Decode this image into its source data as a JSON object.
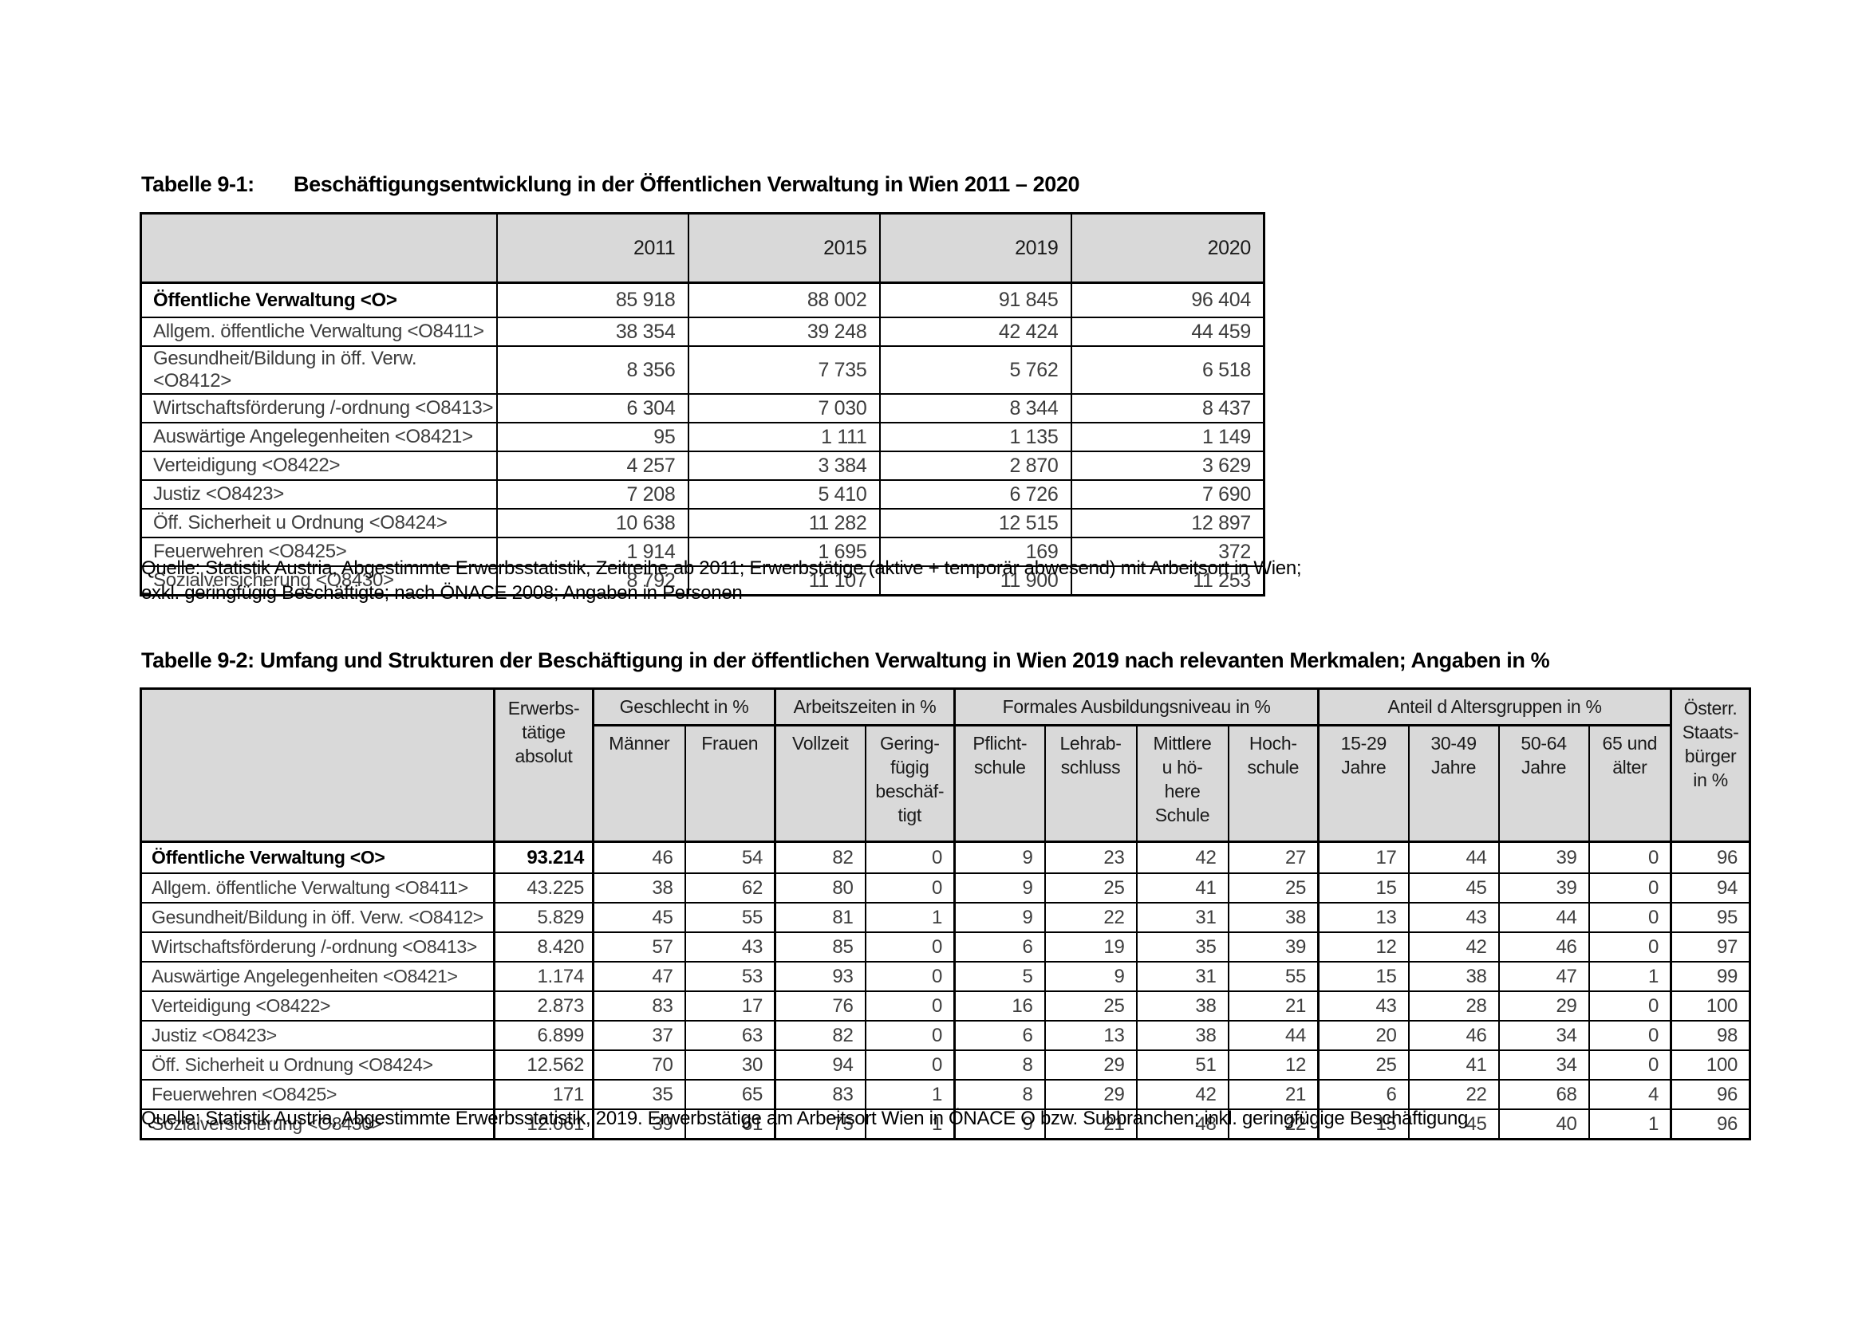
{
  "table1": {
    "title_label": "Tabelle 9-1:",
    "title_text": "Beschäftigungsentwicklung in der Öffentlichen Verwaltung in Wien 2011 – 2020",
    "columns": [
      "2011",
      "2015",
      "2019",
      "2020"
    ],
    "rows": [
      {
        "label": "Öffentliche Verwaltung <O>",
        "bold": true,
        "values": [
          "85 918",
          "88 002",
          "91 845",
          "96 404"
        ]
      },
      {
        "label": "Allgem. öffentliche Verwaltung <O8411>",
        "bold": false,
        "values": [
          "38 354",
          "39 248",
          "42 424",
          "44 459"
        ]
      },
      {
        "label": "Gesundheit/Bildung in öff. Verw. <O8412>",
        "bold": false,
        "values": [
          "8 356",
          "7 735",
          "5 762",
          "6 518"
        ]
      },
      {
        "label": "Wirtschaftsförderung /-ordnung <O8413>",
        "bold": false,
        "values": [
          "6 304",
          "7 030",
          "8 344",
          "8 437"
        ]
      },
      {
        "label": "Auswärtige Angelegenheiten <O8421>",
        "bold": false,
        "values": [
          "95",
          "1 111",
          "1 135",
          "1 149"
        ]
      },
      {
        "label": "Verteidigung <O8422>",
        "bold": false,
        "values": [
          "4 257",
          "3 384",
          "2 870",
          "3 629"
        ]
      },
      {
        "label": "Justiz <O8423>",
        "bold": false,
        "values": [
          "7 208",
          "5 410",
          "6 726",
          "7 690"
        ]
      },
      {
        "label": "Öff. Sicherheit u Ordnung <O8424>",
        "bold": false,
        "values": [
          "10 638",
          "11 282",
          "12 515",
          "12 897"
        ]
      },
      {
        "label": "Feuerwehren <O8425>",
        "bold": false,
        "values": [
          "1 914",
          "1 695",
          "169",
          "372"
        ]
      },
      {
        "label": "Sozialversicherung <O8430>",
        "bold": false,
        "values": [
          "8 792",
          "11 107",
          "11 900",
          "11 253"
        ]
      }
    ],
    "source": "Quelle: Statistik Austria, Abgestimmte Erwerbsstatistik, Zeitreihe ab 2011; Erwerbstätige (aktive + temporär abwesend) mit Arbeitsort in Wien;\nexkl. geringfügig Beschäftigte; nach ÖNACE 2008; Angaben in Personen"
  },
  "table2": {
    "title": "Tabelle 9-2: Umfang und Strukturen der Beschäftigung in der öffentlichen Verwaltung in Wien 2019 nach relevanten Merkmalen; Angaben in %",
    "col_absolut": "Erwerbs-\ntätige\nabsolut",
    "col_citizen": "Österr.\nStaats-\nbürger\nin %",
    "groups": [
      {
        "label": "Geschlecht in %",
        "cols": [
          "Männer",
          "Frauen"
        ]
      },
      {
        "label": "Arbeitszeiten in %",
        "cols": [
          "Vollzeit",
          "Gering-\nfügig\nbeschäf-\ntigt"
        ]
      },
      {
        "label": "Formales Ausbildungsniveau in %",
        "cols": [
          "Pflicht-\nschule",
          "Lehrab-\nschluss",
          "Mittlere\nu hö-\nhere\nSchule",
          "Hoch-\nschule"
        ]
      },
      {
        "label": "Anteil d Altersgruppen in %",
        "cols": [
          "15-29\nJahre",
          "30-49\nJahre",
          "50-64\nJahre",
          "65 und\nälter"
        ]
      }
    ],
    "rows": [
      {
        "label": "Öffentliche Verwaltung <O>",
        "bold": true,
        "absolut": "93.214",
        "values": [
          46,
          54,
          82,
          0,
          9,
          23,
          42,
          27,
          17,
          44,
          39,
          0,
          96
        ]
      },
      {
        "label": "Allgem. öffentliche Verwaltung <O8411>",
        "bold": false,
        "absolut": "43.225",
        "values": [
          38,
          62,
          80,
          0,
          9,
          25,
          41,
          25,
          15,
          45,
          39,
          0,
          94
        ]
      },
      {
        "label": "Gesundheit/Bildung in öff. Verw. <O8412>",
        "bold": false,
        "absolut": "5.829",
        "values": [
          45,
          55,
          81,
          1,
          9,
          22,
          31,
          38,
          13,
          43,
          44,
          0,
          95
        ]
      },
      {
        "label": "Wirtschaftsförderung /-ordnung <O8413>",
        "bold": false,
        "absolut": "8.420",
        "values": [
          57,
          43,
          85,
          0,
          6,
          19,
          35,
          39,
          12,
          42,
          46,
          0,
          97
        ]
      },
      {
        "label": "Auswärtige Angelegenheiten <O8421>",
        "bold": false,
        "absolut": "1.174",
        "values": [
          47,
          53,
          93,
          0,
          5,
          9,
          31,
          55,
          15,
          38,
          47,
          1,
          99
        ]
      },
      {
        "label": "Verteidigung <O8422>",
        "bold": false,
        "absolut": "2.873",
        "values": [
          83,
          17,
          76,
          0,
          16,
          25,
          38,
          21,
          43,
          28,
          29,
          0,
          100
        ]
      },
      {
        "label": "Justiz <O8423>",
        "bold": false,
        "absolut": "6.899",
        "values": [
          37,
          63,
          82,
          0,
          6,
          13,
          38,
          44,
          20,
          46,
          34,
          0,
          98
        ]
      },
      {
        "label": "Öff. Sicherheit u Ordnung <O8424>",
        "bold": false,
        "absolut": "12.562",
        "values": [
          70,
          30,
          94,
          0,
          8,
          29,
          51,
          12,
          25,
          41,
          34,
          0,
          100
        ]
      },
      {
        "label": "Feuerwehren <O8425>",
        "bold": false,
        "absolut": "171",
        "values": [
          35,
          65,
          83,
          1,
          8,
          29,
          42,
          21,
          6,
          22,
          68,
          4,
          96
        ]
      },
      {
        "label": "Sozialversicherung <O8430>",
        "bold": false,
        "absolut": "12.061",
        "values": [
          39,
          61,
          75,
          1,
          9,
          21,
          48,
          22,
          15,
          45,
          40,
          1,
          96
        ]
      }
    ],
    "source": "Quelle: Statistik Austria, Abgestimmte Erwerbsstatistik, 2019. Erwerbstätige am Arbeitsort Wien in ÖNACE O bzw. Subbranchen; inkl. geringfügige Beschäftigung"
  }
}
